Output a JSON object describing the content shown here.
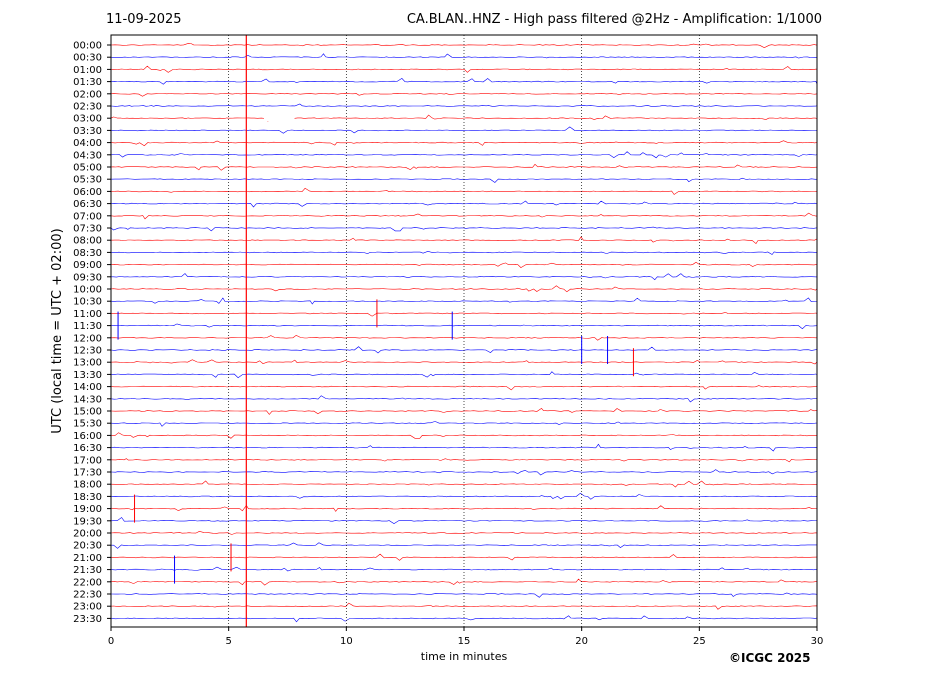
{
  "header": {
    "date": "11-09-2025",
    "title": "CA.BLAN..HNZ - High pass filtered @2Hz - Amplification: 1/1000"
  },
  "footer": {
    "credit": "©ICGC 2025"
  },
  "colors": {
    "trace_a": "#ff0000",
    "trace_b": "#0000ff",
    "grid": "#000000",
    "axis": "#000000"
  },
  "chart_data": {
    "type": "line",
    "title": "CA.BLAN..HNZ - High pass filtered @2Hz - Amplification: 1/1000",
    "xlabel": "time in minutes",
    "ylabel": "UTC (local time = UTC + 02:00)",
    "xlim": [
      0,
      30
    ],
    "x_ticks": [
      0,
      5,
      10,
      15,
      20,
      25,
      30
    ],
    "y_tick_labels": [
      "00:00",
      "00:30",
      "01:00",
      "01:30",
      "02:00",
      "02:30",
      "03:00",
      "03:30",
      "04:00",
      "04:30",
      "05:00",
      "05:30",
      "06:00",
      "06:30",
      "07:00",
      "07:30",
      "08:00",
      "08:30",
      "09:00",
      "09:30",
      "10:00",
      "10:30",
      "11:00",
      "11:30",
      "12:00",
      "12:30",
      "13:00",
      "13:30",
      "14:00",
      "14:30",
      "15:00",
      "15:30",
      "16:00",
      "16:30",
      "17:00",
      "17:30",
      "18:00",
      "18:30",
      "19:00",
      "19:30",
      "20:00",
      "20:30",
      "21:00",
      "21:30",
      "22:00",
      "22:30",
      "23:00",
      "23:30"
    ],
    "grid": "vertical dotted lines at x ticks",
    "trace_colors": "alternating red and blue per row, starting red",
    "events": [
      {
        "row": "00:00",
        "minute": 5.75,
        "note": "large vertical spike spanning all rows"
      },
      {
        "row": "03:00",
        "minute": 6.5,
        "note": "data gap"
      },
      {
        "row": "11:00",
        "minute": 11.3
      },
      {
        "row": "11:30",
        "minute": 0.3
      },
      {
        "row": "11:30",
        "minute": 14.5
      },
      {
        "row": "12:30",
        "minute": 20.0
      },
      {
        "row": "12:30",
        "minute": 21.1
      },
      {
        "row": "13:00",
        "minute": 22.2
      },
      {
        "row": "19:00",
        "minute": 1.0
      },
      {
        "row": "21:00",
        "minute": 5.1
      },
      {
        "row": "21:30",
        "minute": 2.7
      }
    ]
  }
}
